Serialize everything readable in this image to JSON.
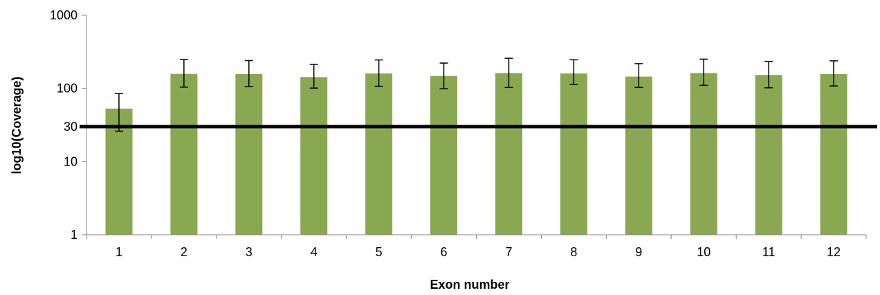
{
  "chart_data": {
    "type": "bar",
    "xlabel": "Exon number",
    "ylabel": "log10(Coverage)",
    "yscale": "log",
    "ylim": [
      1,
      1000
    ],
    "yticks": [
      1,
      10,
      30,
      100,
      1000
    ],
    "grid": false,
    "legend": "none",
    "categories": [
      "1",
      "2",
      "3",
      "4",
      "5",
      "6",
      "7",
      "8",
      "9",
      "10",
      "11",
      "12"
    ],
    "series": [
      {
        "values": [
          53,
          158,
          157,
          143,
          160,
          148,
          162,
          160,
          145,
          162,
          153,
          157
        ],
        "error_low": [
          26,
          104,
          106,
          101,
          107,
          99,
          103,
          113,
          103,
          110,
          102,
          108
        ],
        "error_high": [
          85,
          248,
          240,
          213,
          245,
          222,
          258,
          246,
          218,
          251,
          234,
          238
        ],
        "color": "#8aa752"
      }
    ],
    "reference_line": {
      "value": 30,
      "color": "#000000"
    }
  }
}
